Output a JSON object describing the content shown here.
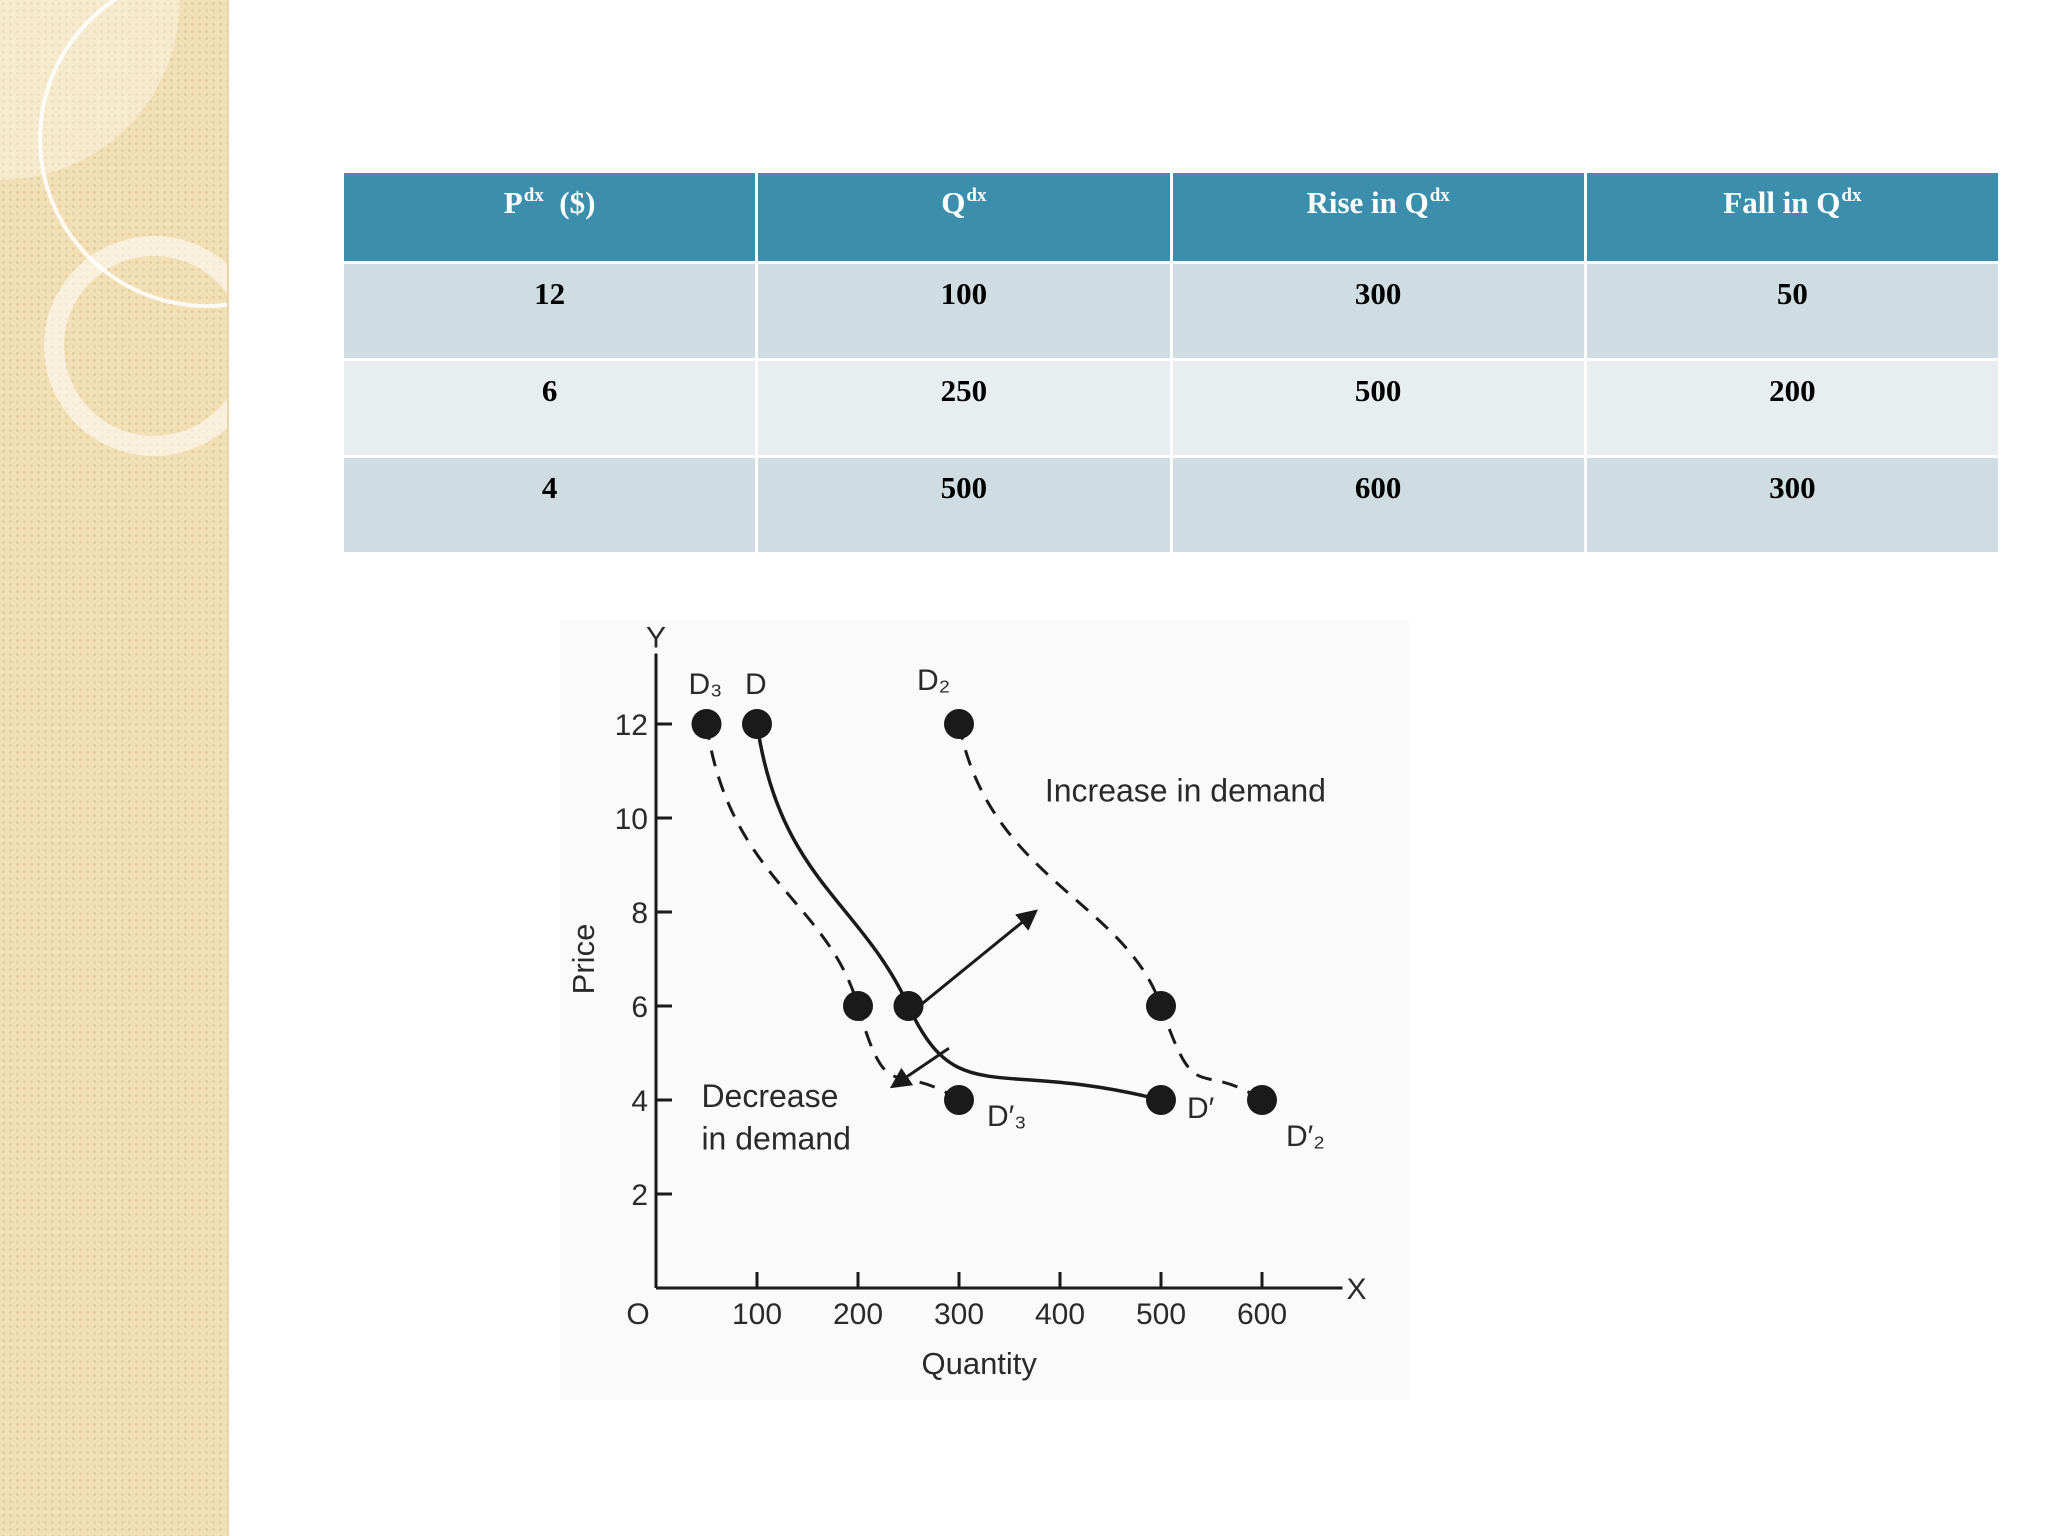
{
  "table": {
    "headers": [
      {
        "main": "P",
        "sup": "dx",
        "suffix": "  ($)"
      },
      {
        "main": "Q",
        "sup": "dx",
        "suffix": ""
      },
      {
        "main": "Rise in Q",
        "sup": "dx",
        "suffix": ""
      },
      {
        "main": "Fall in Q",
        "sup": "dx",
        "suffix": ""
      }
    ],
    "rows": [
      [
        "12",
        "100",
        "300",
        "50"
      ],
      [
        "6",
        "250",
        "500",
        "200"
      ],
      [
        "4",
        "500",
        "600",
        "300"
      ]
    ]
  },
  "chart_data": {
    "type": "line",
    "title": "",
    "xlabel": "Quantity",
    "ylabel": "Price",
    "x_axis_letter": "X",
    "y_axis_letter": "Y",
    "origin_label": "O",
    "xlim": [
      0,
      650
    ],
    "ylim": [
      0,
      13.5
    ],
    "x_ticks": [
      100,
      200,
      300,
      400,
      500,
      600
    ],
    "y_ticks": [
      2,
      4,
      6,
      8,
      10,
      12
    ],
    "series": [
      {
        "name": "D",
        "end_label": "D′",
        "style": "solid",
        "x": [
          100,
          250,
          500
        ],
        "y": [
          12,
          6,
          4
        ]
      },
      {
        "name": "D₂",
        "end_label": "D′₂",
        "style": "dashed",
        "x": [
          300,
          500,
          600
        ],
        "y": [
          12,
          6,
          4
        ]
      },
      {
        "name": "D₃",
        "end_label": "D′₃",
        "style": "dashed",
        "x": [
          50,
          200,
          300
        ],
        "y": [
          12,
          6,
          4
        ]
      }
    ],
    "annotations": {
      "increase": "Increase in demand",
      "decrease_line1": "Decrease",
      "decrease_line2": "in demand"
    },
    "colors": {
      "ink": "#1a1a1a",
      "header": "#3b8fad",
      "row_odd": "#cfdde2",
      "row_even": "#e8edf0"
    }
  }
}
